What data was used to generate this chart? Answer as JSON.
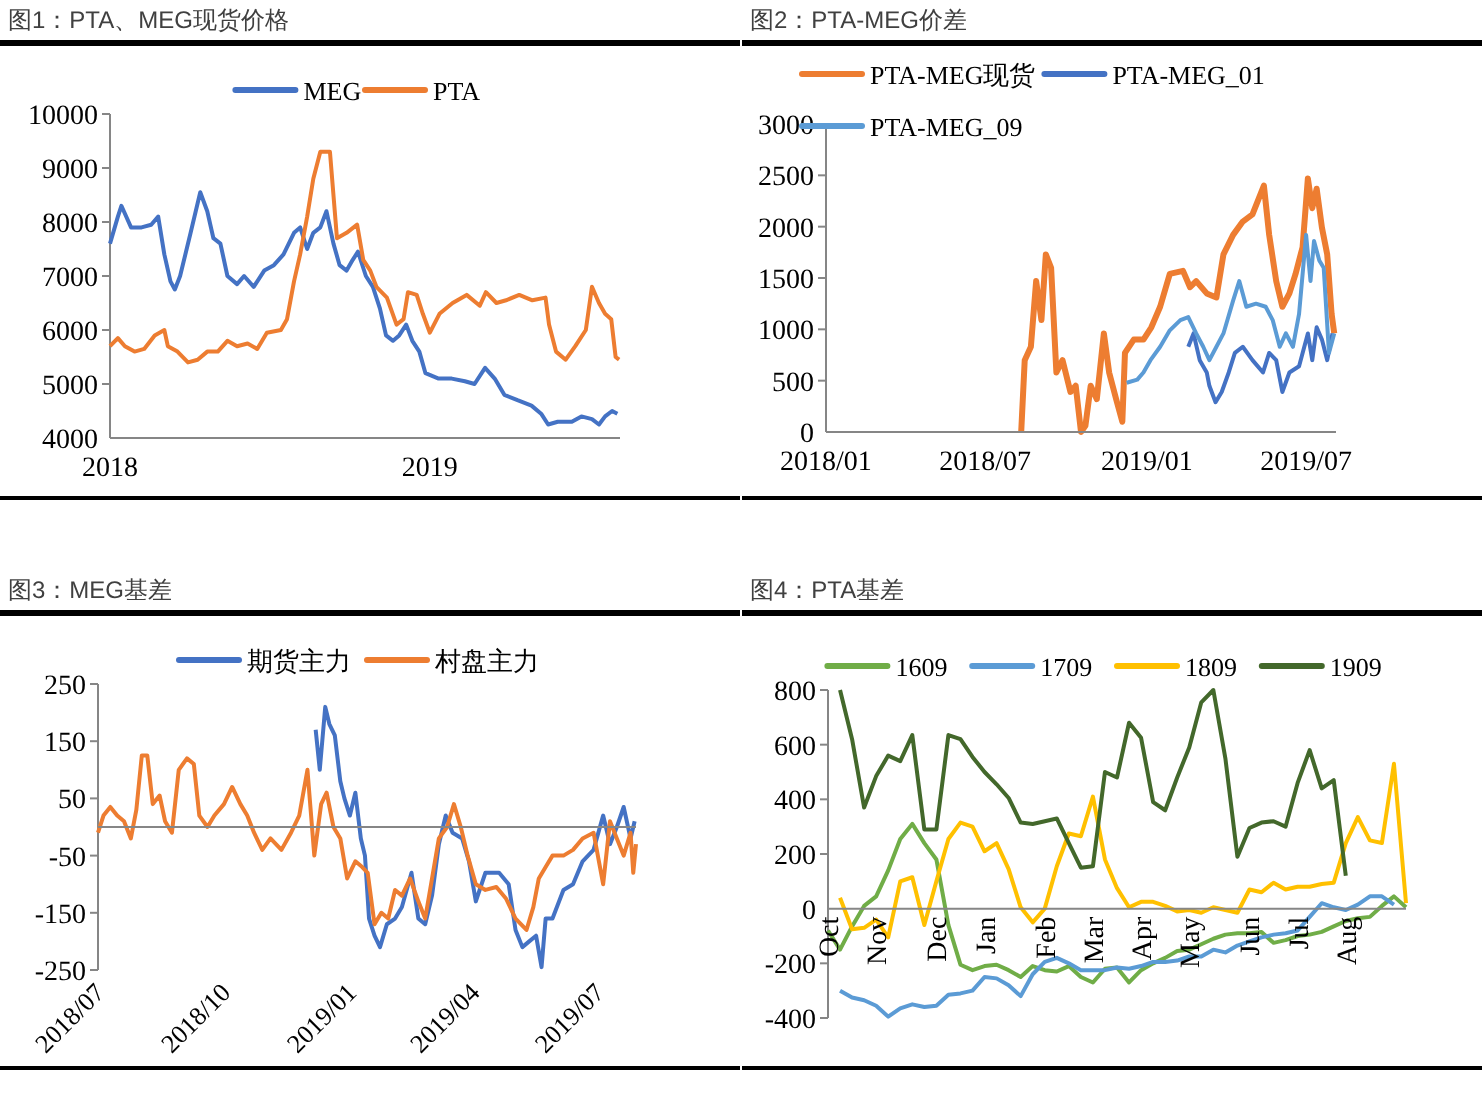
{
  "chart_data": [
    {
      "type": "line",
      "title": "图1：PTA、MEG现货价格",
      "legend": "top",
      "xlim": [
        "2018-01-01",
        "2019-08-06"
      ],
      "xticks": [
        {
          "value": "2018-01-01",
          "label": "2018"
        },
        {
          "value": "2019-01-01",
          "label": "2019"
        }
      ],
      "ylim": [
        4000,
        10000
      ],
      "yticks": [
        4000,
        5000,
        6000,
        7000,
        8000,
        9000,
        10000
      ],
      "series": [
        {
          "name": "MEG",
          "color": "#4472c4",
          "x": [
            "2018-01-01",
            "2018-01-10",
            "2018-01-14",
            "2018-01-25",
            "2018-02-06",
            "2018-02-17",
            "2018-02-25",
            "2018-03-04",
            "2018-03-11",
            "2018-03-16",
            "2018-03-22",
            "2018-04-03",
            "2018-04-14",
            "2018-04-22",
            "2018-04-29",
            "2018-05-07",
            "2018-05-15",
            "2018-05-26",
            "2018-06-03",
            "2018-06-14",
            "2018-06-26",
            "2018-07-07",
            "2018-07-18",
            "2018-07-30",
            "2018-08-06",
            "2018-08-14",
            "2018-08-21",
            "2018-08-29",
            "2018-09-05",
            "2018-09-13",
            "2018-09-20",
            "2018-09-28",
            "2018-10-05",
            "2018-10-11",
            "2018-10-20",
            "2018-10-28",
            "2018-11-05",
            "2018-11-12",
            "2018-11-20",
            "2018-11-27",
            "2018-12-05",
            "2018-12-12",
            "2018-12-20",
            "2018-12-27",
            "2019-01-11",
            "2019-01-26",
            "2019-02-10",
            "2019-02-21",
            "2019-03-05",
            "2019-03-16",
            "2019-03-27",
            "2019-04-11",
            "2019-04-27",
            "2019-05-08",
            "2019-05-16",
            "2019-05-27",
            "2019-06-12",
            "2019-06-23",
            "2019-07-05",
            "2019-07-13",
            "2019-07-20",
            "2019-07-28",
            "2019-08-03"
          ],
          "values": [
            7600,
            8100,
            8300,
            7900,
            7900,
            7950,
            8100,
            7400,
            6900,
            6750,
            7000,
            7800,
            8550,
            8200,
            7700,
            7600,
            7000,
            6850,
            7000,
            6800,
            7100,
            7200,
            7400,
            7800,
            7900,
            7500,
            7800,
            7900,
            8200,
            7600,
            7200,
            7100,
            7300,
            7450,
            7000,
            6800,
            6400,
            5900,
            5800,
            5900,
            6100,
            5800,
            5600,
            5200,
            5100,
            5100,
            5050,
            5000,
            5300,
            5100,
            4800,
            4700,
            4600,
            4450,
            4250,
            4300,
            4300,
            4400,
            4350,
            4250,
            4400,
            4500,
            4450
          ]
        },
        {
          "name": "PTA",
          "color": "#ed7d31",
          "x": [
            "2018-01-01",
            "2018-01-10",
            "2018-01-18",
            "2018-01-29",
            "2018-02-09",
            "2018-02-21",
            "2018-03-04",
            "2018-03-08",
            "2018-03-19",
            "2018-03-31",
            "2018-04-11",
            "2018-04-22",
            "2018-05-04",
            "2018-05-15",
            "2018-05-26",
            "2018-06-07",
            "2018-06-18",
            "2018-06-29",
            "2018-07-15",
            "2018-07-22",
            "2018-07-30",
            "2018-08-06",
            "2018-08-14",
            "2018-08-21",
            "2018-08-29",
            "2018-09-09",
            "2018-09-17",
            "2018-09-28",
            "2018-10-10",
            "2018-10-17",
            "2018-10-25",
            "2018-11-01",
            "2018-11-13",
            "2018-11-24",
            "2018-12-02",
            "2018-12-07",
            "2018-12-17",
            "2018-12-24",
            "2019-01-01",
            "2019-01-12",
            "2019-01-27",
            "2019-02-12",
            "2019-02-27",
            "2019-03-06",
            "2019-03-18",
            "2019-03-29",
            "2019-04-13",
            "2019-04-28",
            "2019-05-13",
            "2019-05-17",
            "2019-05-25",
            "2019-06-05",
            "2019-06-16",
            "2019-06-28",
            "2019-07-05",
            "2019-07-13",
            "2019-07-20",
            "2019-07-27",
            "2019-08-01",
            "2019-08-05"
          ],
          "values": [
            5700,
            5850,
            5700,
            5600,
            5650,
            5900,
            6000,
            5700,
            5600,
            5400,
            5450,
            5600,
            5600,
            5800,
            5700,
            5750,
            5650,
            5950,
            6000,
            6200,
            6900,
            7400,
            8100,
            8800,
            9300,
            9300,
            7700,
            7800,
            7950,
            7300,
            7100,
            6800,
            6600,
            6100,
            6200,
            6700,
            6650,
            6300,
            5950,
            6300,
            6500,
            6650,
            6450,
            6700,
            6500,
            6550,
            6650,
            6550,
            6600,
            6100,
            5600,
            5450,
            5700,
            6000,
            6800,
            6500,
            6300,
            6200,
            5500,
            5450
          ]
        }
      ]
    },
    {
      "type": "line",
      "title": "图2：PTA-MEG价差",
      "legend": "top",
      "xlim": [
        "2018-01-01",
        "2019-08-04"
      ],
      "xticks": [
        {
          "value": "2018-01-01",
          "label": "2018/01"
        },
        {
          "value": "2018-07-01",
          "label": "2018/07"
        },
        {
          "value": "2019-01-01",
          "label": "2019/01"
        },
        {
          "value": "2019-07-01",
          "label": "2019/07"
        }
      ],
      "ylim": [
        0,
        3000
      ],
      "yticks": [
        0,
        500,
        1000,
        1500,
        2000,
        2500,
        3000
      ],
      "series": [
        {
          "name": "PTA-MEG现货",
          "color": "#ed7d31",
          "x": [
            "2018-08-11",
            "2018-08-15",
            "2018-08-22",
            "2018-08-28",
            "2018-09-03",
            "2018-09-08",
            "2018-09-14",
            "2018-09-20",
            "2018-09-27",
            "2018-10-06",
            "2018-10-12",
            "2018-10-18",
            "2018-10-23",
            "2018-10-29",
            "2018-11-05",
            "2018-11-13",
            "2018-11-19",
            "2018-11-27",
            "2018-12-04",
            "2018-12-07",
            "2018-12-17",
            "2018-12-28",
            "2019-01-06",
            "2019-01-16",
            "2019-01-27",
            "2019-02-11",
            "2019-02-19",
            "2019-02-26",
            "2019-03-10",
            "2019-03-21",
            "2019-03-29",
            "2019-04-09",
            "2019-04-20",
            "2019-05-01",
            "2019-05-14",
            "2019-05-20",
            "2019-05-28",
            "2019-06-04",
            "2019-06-12",
            "2019-06-19",
            "2019-06-27",
            "2019-07-03",
            "2019-07-08",
            "2019-07-13",
            "2019-07-19",
            "2019-07-25",
            "2019-07-30",
            "2019-08-02"
          ],
          "values": [
            0,
            700,
            830,
            1470,
            1090,
            1730,
            1600,
            580,
            700,
            390,
            450,
            0,
            60,
            450,
            320,
            960,
            580,
            320,
            100,
            770,
            900,
            900,
            1020,
            1220,
            1540,
            1570,
            1410,
            1470,
            1350,
            1310,
            1730,
            1920,
            2050,
            2120,
            2400,
            1920,
            1470,
            1220,
            1350,
            1540,
            1800,
            2470,
            2180,
            2370,
            1990,
            1730,
            1150,
            960
          ]
        },
        {
          "name": "PTA-MEG_01",
          "color": "#4472c4",
          "x": [
            "2019-02-17",
            "2019-02-23",
            "2019-03-02",
            "2019-03-10",
            "2019-03-13",
            "2019-03-20",
            "2019-03-27",
            "2019-04-04",
            "2019-04-11",
            "2019-04-20",
            "2019-05-01",
            "2019-05-13",
            "2019-05-20",
            "2019-05-28",
            "2019-06-04",
            "2019-06-12",
            "2019-06-23",
            "2019-07-03",
            "2019-07-08",
            "2019-07-13",
            "2019-07-19",
            "2019-07-25",
            "2019-07-31"
          ],
          "values": [
            830,
            960,
            700,
            580,
            450,
            290,
            390,
            580,
            770,
            830,
            700,
            580,
            770,
            700,
            390,
            580,
            640,
            960,
            700,
            1020,
            900,
            700,
            960
          ]
        },
        {
          "name": "PTA-MEG_09",
          "color": "#5b9bd5",
          "x": [
            "2018-12-09",
            "2018-12-21",
            "2018-12-28",
            "2019-01-05",
            "2019-01-16",
            "2019-01-27",
            "2019-02-08",
            "2019-02-17",
            "2019-02-26",
            "2019-03-06",
            "2019-03-13",
            "2019-03-21",
            "2019-03-29",
            "2019-04-09",
            "2019-04-16",
            "2019-04-24",
            "2019-05-05",
            "2019-05-16",
            "2019-05-24",
            "2019-06-01",
            "2019-06-08",
            "2019-06-16",
            "2019-06-23",
            "2019-07-01",
            "2019-07-06",
            "2019-07-10",
            "2019-07-16",
            "2019-07-21",
            "2019-07-27",
            "2019-08-02"
          ],
          "values": [
            480,
            510,
            580,
            700,
            830,
            990,
            1090,
            1120,
            960,
            830,
            700,
            830,
            960,
            1280,
            1470,
            1220,
            1250,
            1220,
            1090,
            830,
            960,
            830,
            1150,
            1920,
            1470,
            1860,
            1670,
            1600,
            770,
            960
          ]
        }
      ]
    },
    {
      "type": "line",
      "title": "图3：MEG基差",
      "legend": "top",
      "xlim": [
        "2018-07-01",
        "2019-07-29"
      ],
      "xticks": [
        {
          "value": "2018-07-01",
          "label": "2018/07"
        },
        {
          "value": "2018-10-01",
          "label": "2018/10"
        },
        {
          "value": "2019-01-01",
          "label": "2019/01"
        },
        {
          "value": "2019-04-01",
          "label": "2019/04"
        },
        {
          "value": "2019-07-01",
          "label": "2019/07"
        }
      ],
      "ylim": [
        -250,
        250
      ],
      "yticks": [
        -250,
        -150,
        -50,
        50,
        150,
        250
      ],
      "series": [
        {
          "name": "期货主力",
          "color": "#4472c4",
          "x": [
            "2018-12-07",
            "2018-12-10",
            "2018-12-14",
            "2018-12-17",
            "2018-12-21",
            "2018-12-25",
            "2018-12-28",
            "2019-01-01",
            "2019-01-05",
            "2019-01-09",
            "2019-01-12",
            "2019-01-15",
            "2019-01-19",
            "2019-01-23",
            "2019-01-28",
            "2019-02-03",
            "2019-02-08",
            "2019-02-15",
            "2019-02-20",
            "2019-02-25",
            "2019-03-02",
            "2019-03-07",
            "2019-03-12",
            "2019-03-17",
            "2019-03-24",
            "2019-03-29",
            "2019-04-03",
            "2019-04-10",
            "2019-04-20",
            "2019-04-27",
            "2019-05-02",
            "2019-05-07",
            "2019-05-12",
            "2019-05-17",
            "2019-05-21",
            "2019-05-24",
            "2019-05-29",
            "2019-06-06",
            "2019-06-13",
            "2019-06-20",
            "2019-06-28",
            "2019-07-05",
            "2019-07-10",
            "2019-07-15",
            "2019-07-20",
            "2019-07-25",
            "2019-07-28"
          ],
          "values": [
            170,
            100,
            210,
            180,
            160,
            80,
            50,
            20,
            60,
            -20,
            -50,
            -160,
            -190,
            -210,
            -170,
            -160,
            -140,
            -80,
            -160,
            -170,
            -120,
            -30,
            20,
            -10,
            -20,
            -60,
            -130,
            -80,
            -80,
            -100,
            -180,
            -210,
            -200,
            -190,
            -245,
            -160,
            -160,
            -110,
            -100,
            -60,
            -40,
            20,
            -30,
            0,
            35,
            -20,
            10
          ]
        },
        {
          "name": "村盘主力",
          "color": "#ed7d31",
          "x": [
            "2018-07-01",
            "2018-07-05",
            "2018-07-10",
            "2018-07-15",
            "2018-07-20",
            "2018-07-25",
            "2018-07-29",
            "2018-08-02",
            "2018-08-06",
            "2018-08-10",
            "2018-08-15",
            "2018-08-19",
            "2018-08-24",
            "2018-08-29",
            "2018-09-04",
            "2018-09-09",
            "2018-09-13",
            "2018-09-19",
            "2018-09-24",
            "2018-10-01",
            "2018-10-07",
            "2018-10-13",
            "2018-10-18",
            "2018-10-23",
            "2018-10-29",
            "2018-11-04",
            "2018-11-12",
            "2018-11-19",
            "2018-11-25",
            "2018-12-01",
            "2018-12-06",
            "2018-12-11",
            "2018-12-15",
            "2018-12-20",
            "2018-12-25",
            "2018-12-30",
            "2019-01-05",
            "2019-01-10",
            "2019-01-14",
            "2019-01-19",
            "2019-01-24",
            "2019-01-29",
            "2019-02-03",
            "2019-02-08",
            "2019-02-14",
            "2019-02-20",
            "2019-02-25",
            "2019-03-02",
            "2019-03-07",
            "2019-03-13",
            "2019-03-18",
            "2019-03-23",
            "2019-03-28",
            "2019-04-03",
            "2019-04-10",
            "2019-04-18",
            "2019-04-25",
            "2019-05-02",
            "2019-05-10",
            "2019-05-15",
            "2019-05-19",
            "2019-05-24",
            "2019-05-29",
            "2019-06-06",
            "2019-06-13",
            "2019-06-20",
            "2019-06-28",
            "2019-07-05",
            "2019-07-10",
            "2019-07-15",
            "2019-07-20",
            "2019-07-25",
            "2019-07-27",
            "2019-07-29"
          ],
          "values": [
            -10,
            20,
            35,
            20,
            10,
            -20,
            30,
            125,
            125,
            40,
            55,
            10,
            -10,
            100,
            120,
            110,
            20,
            0,
            20,
            40,
            70,
            40,
            20,
            -10,
            -40,
            -20,
            -40,
            -10,
            20,
            100,
            -50,
            40,
            60,
            0,
            -20,
            -90,
            -60,
            -70,
            -80,
            -170,
            -150,
            -160,
            -110,
            -120,
            -90,
            -130,
            -160,
            -90,
            -20,
            0,
            40,
            0,
            -50,
            -100,
            -110,
            -105,
            -125,
            -160,
            -180,
            -140,
            -90,
            -70,
            -50,
            -50,
            -40,
            -20,
            -10,
            -100,
            10,
            -20,
            -50,
            -10,
            -80,
            -30
          ]
        }
      ]
    },
    {
      "type": "line",
      "title": "图4：PTA基差",
      "legend": "top",
      "categories": [
        "Oct",
        null,
        null,
        null,
        "Nov",
        null,
        null,
        null,
        null,
        "Dec",
        null,
        null,
        null,
        "Jan",
        null,
        null,
        null,
        null,
        "Feb",
        null,
        null,
        null,
        "Mar",
        null,
        null,
        null,
        "Apr",
        null,
        null,
        null,
        "May",
        null,
        null,
        null,
        null,
        "Jun",
        null,
        null,
        null,
        "Jul",
        null,
        null,
        null,
        "Aug",
        null,
        null,
        null,
        null,
        null
      ],
      "ylim": [
        -400,
        800
      ],
      "yticks": [
        -400,
        -200,
        0,
        200,
        400,
        600,
        800
      ],
      "series": [
        {
          "name": "1609",
          "color": "#70ad47",
          "values": [
            -80,
            -150,
            -65,
            10,
            45,
            140,
            255,
            310,
            240,
            180,
            -60,
            -205,
            -225,
            -210,
            -205,
            -225,
            -250,
            -210,
            -225,
            -230,
            -210,
            -250,
            -270,
            -220,
            -215,
            -270,
            -225,
            -200,
            -180,
            -155,
            -150,
            -130,
            -110,
            -95,
            -90,
            -90,
            -85,
            -125,
            -115,
            -100,
            -95,
            -85,
            -65,
            -45,
            -35,
            -30,
            10,
            45,
            5
          ]
        },
        {
          "name": "1709",
          "color": "#5b9bd5",
          "values": [
            null,
            -300,
            -325,
            -335,
            -355,
            -395,
            -365,
            -350,
            -360,
            -355,
            -315,
            -310,
            -300,
            -250,
            -255,
            -280,
            -320,
            -240,
            -195,
            -180,
            -200,
            -225,
            -225,
            -225,
            -215,
            -220,
            -210,
            -195,
            -195,
            -190,
            -175,
            -175,
            -150,
            -160,
            -135,
            -120,
            -105,
            -95,
            -90,
            -80,
            -30,
            20,
            5,
            -5,
            15,
            45,
            45,
            15,
            null
          ]
        },
        {
          "name": "1809",
          "color": "#ffc000",
          "values": [
            null,
            40,
            -75,
            -70,
            -40,
            -105,
            100,
            115,
            -60,
            100,
            255,
            315,
            300,
            210,
            240,
            145,
            5,
            -50,
            0,
            155,
            275,
            265,
            410,
            180,
            75,
            5,
            25,
            25,
            10,
            -10,
            -5,
            -15,
            5,
            -5,
            -15,
            70,
            60,
            95,
            70,
            80,
            80,
            90,
            95,
            240,
            335,
            250,
            240,
            530,
            20
          ]
        },
        {
          "name": "1909",
          "color": "#43682b",
          "values": [
            null,
            800,
            620,
            370,
            485,
            560,
            540,
            635,
            290,
            290,
            635,
            620,
            555,
            500,
            455,
            405,
            315,
            310,
            320,
            330,
            240,
            150,
            155,
            500,
            480,
            680,
            625,
            390,
            360,
            480,
            590,
            755,
            800,
            550,
            190,
            295,
            315,
            320,
            300,
            460,
            580,
            440,
            470,
            120,
            null,
            null,
            null,
            null,
            null
          ]
        }
      ]
    }
  ]
}
